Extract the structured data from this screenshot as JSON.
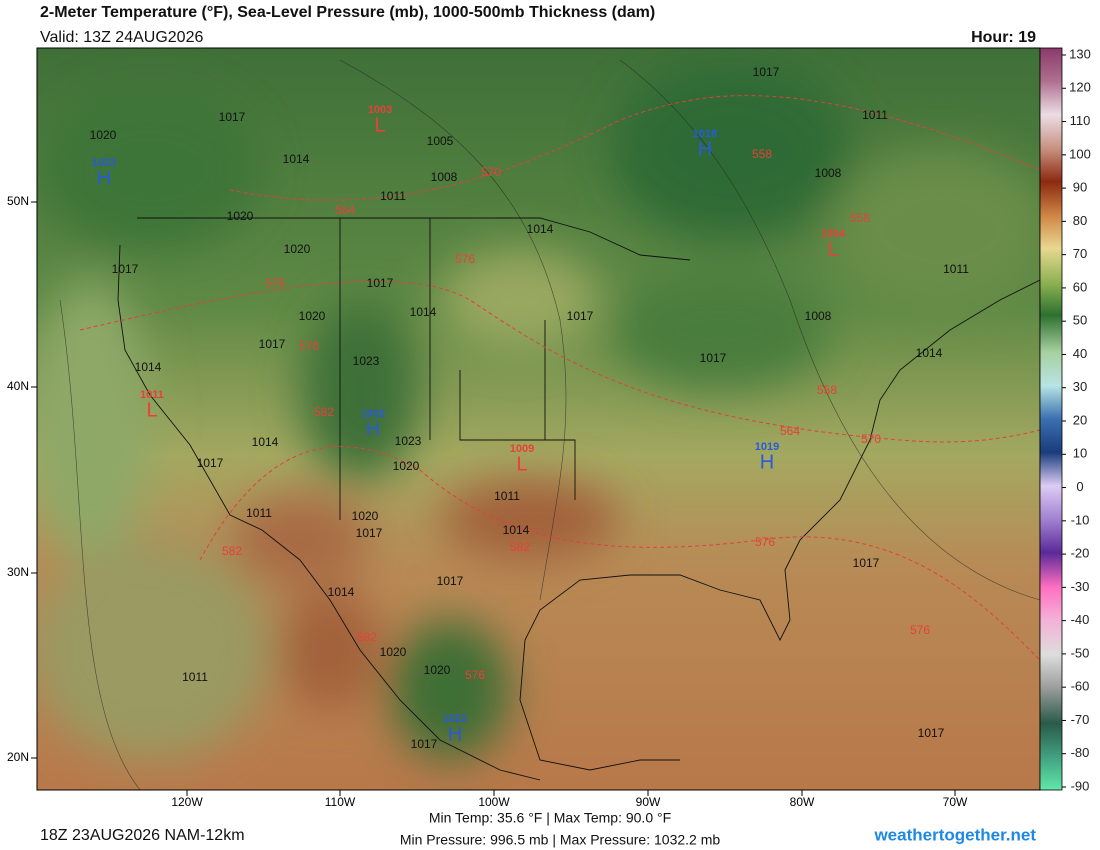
{
  "header": {
    "title": "2-Meter Temperature (°F), Sea-Level Pressure (mb), 1000-500mb Thickness (dam)",
    "valid": "Valid: 13Z 24AUG2026",
    "hour": "Hour: 19"
  },
  "map": {
    "lat_ticks": [
      "50N",
      "40N",
      "30N",
      "20N"
    ],
    "lon_ticks": [
      "120W",
      "110W",
      "100W",
      "90W",
      "80W",
      "70W"
    ],
    "isobars": [
      1017,
      1011,
      1005,
      1008,
      1011,
      1014,
      1017,
      1020,
      1020,
      1020,
      1017,
      1017,
      1014,
      1020,
      1017,
      1023,
      1014,
      1014,
      1017,
      1008,
      1011,
      1008,
      1014,
      1017,
      1014,
      1023,
      1017,
      1020,
      1011,
      1011,
      1020,
      1017,
      1014,
      1017,
      1014,
      1017,
      1020,
      1020,
      1017,
      1011,
      1017
    ],
    "thickness": [
      570,
      564,
      576,
      576,
      558,
      558,
      576,
      582,
      564,
      558,
      570,
      582,
      582,
      576,
      582,
      576,
      576
    ],
    "centers": [
      {
        "type": "L",
        "value": 1003
      },
      {
        "type": "H",
        "value": 1018
      },
      {
        "type": "H",
        "value": 1023
      },
      {
        "type": "L",
        "value": 1004
      },
      {
        "type": "L",
        "value": 1011
      },
      {
        "type": "H",
        "value": 1032
      },
      {
        "type": "L",
        "value": 1009
      },
      {
        "type": "H",
        "value": 1019
      },
      {
        "type": "H",
        "value": 1022
      }
    ]
  },
  "colorbar": {
    "ticks": [
      130,
      120,
      110,
      100,
      90,
      80,
      70,
      60,
      50,
      40,
      30,
      20,
      10,
      0,
      -10,
      -20,
      -30,
      -40,
      -50,
      -60,
      -70,
      -80,
      -90
    ],
    "range": [
      -90,
      130
    ]
  },
  "footer": {
    "run": "18Z 23AUG2026 NAM-12km",
    "temps": "Min Temp:  35.6 °F | Max Temp:  90.0 °F",
    "pressures": "Min Pressure: 996.5 mb | Max Pressure: 1032.2 mb",
    "site": "weathertogether.net"
  }
}
